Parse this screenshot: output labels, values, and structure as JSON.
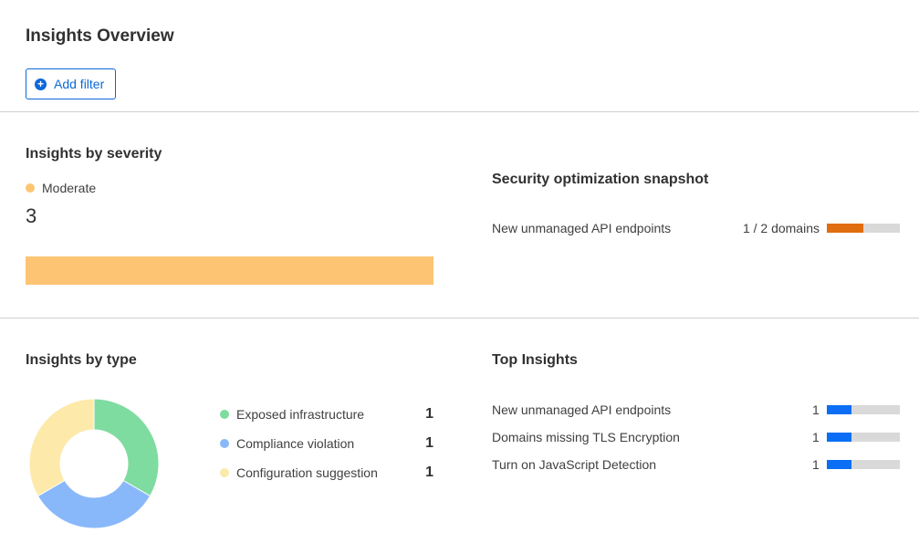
{
  "header": {
    "title": "Insights Overview",
    "add_filter_label": "Add filter",
    "add_filter_icon": "plus-circle-icon"
  },
  "severity": {
    "title": "Insights by severity",
    "level": "Moderate",
    "count": "3",
    "color": "#fdc573"
  },
  "snapshot": {
    "title": "Security optimization snapshot",
    "items": [
      {
        "label": "New unmanaged API endpoints",
        "value": "1 / 2 domains",
        "fraction": 0.5,
        "color": "#e06d10"
      }
    ]
  },
  "by_type": {
    "title": "Insights by type",
    "items": [
      {
        "label": "Exposed infrastructure",
        "value": "1",
        "color": "#7fdca0"
      },
      {
        "label": "Compliance violation",
        "value": "1",
        "color": "#89b8fa"
      },
      {
        "label": "Configuration suggestion",
        "value": "1",
        "color": "#fde9a9"
      }
    ]
  },
  "top": {
    "title": "Top Insights",
    "bar_color": "#0b6ef5",
    "items": [
      {
        "label": "New unmanaged API endpoints",
        "value": "1",
        "fraction": 0.333
      },
      {
        "label": "Domains missing TLS Encryption",
        "value": "1",
        "fraction": 0.333
      },
      {
        "label": "Turn on JavaScript Detection",
        "value": "1",
        "fraction": 0.333
      }
    ]
  }
}
